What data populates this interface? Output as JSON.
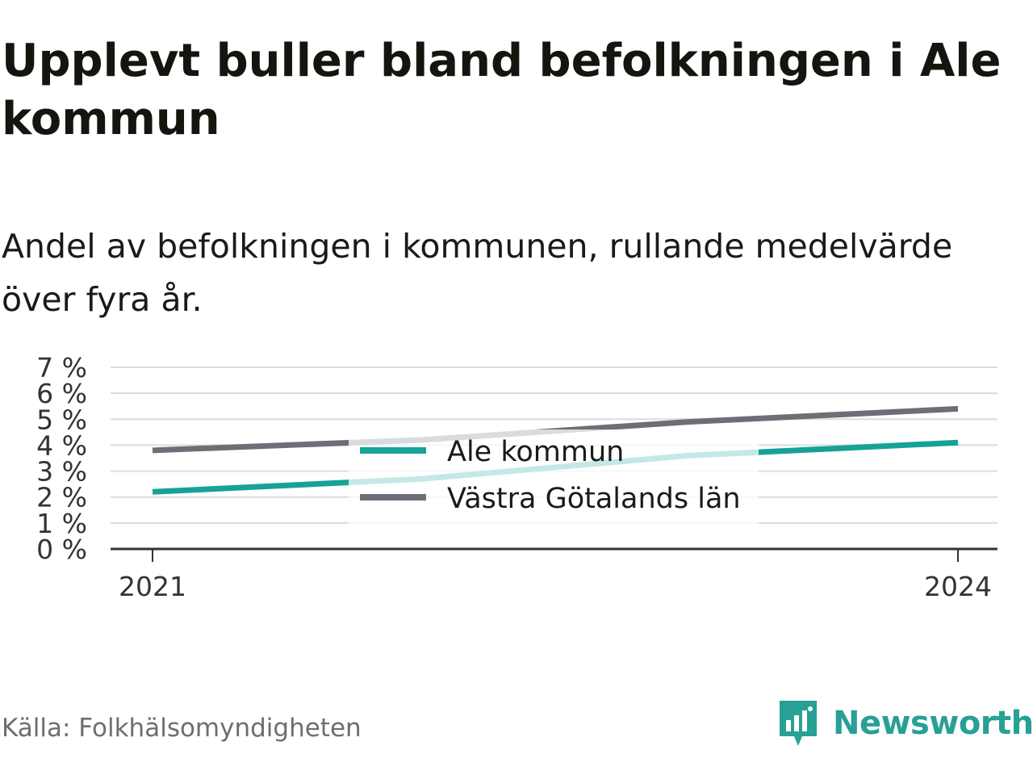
{
  "title": "Upplevt buller bland befolkningen i Ale kommun",
  "subtitle": "Andel av befolkningen i kommunen, rullande medelvärde över fyra år.",
  "source": "Källa: Folkhälsomyndigheten",
  "brand": {
    "name": "Newsworthy",
    "icon": "newsworthy-logo-icon",
    "color": "#27a095"
  },
  "chart_data": {
    "type": "line",
    "x": [
      2021,
      2022,
      2023,
      2024
    ],
    "xticks": [
      "2021",
      "2024"
    ],
    "ylim": [
      0,
      7
    ],
    "yticks": [
      0,
      1,
      2,
      3,
      4,
      5,
      6,
      7
    ],
    "ytick_labels": [
      "0 %",
      "1 %",
      "2 %",
      "3 %",
      "4 %",
      "5 %",
      "6 %",
      "7 %"
    ],
    "grid": true,
    "legend_position": "center",
    "series": [
      {
        "name": "Ale kommun",
        "color": "#16a396",
        "values": [
          2.2,
          2.7,
          3.6,
          4.1
        ]
      },
      {
        "name": "Västra Götalands län",
        "color": "#6f6e76",
        "values": [
          3.8,
          4.2,
          4.9,
          5.4
        ]
      }
    ]
  }
}
